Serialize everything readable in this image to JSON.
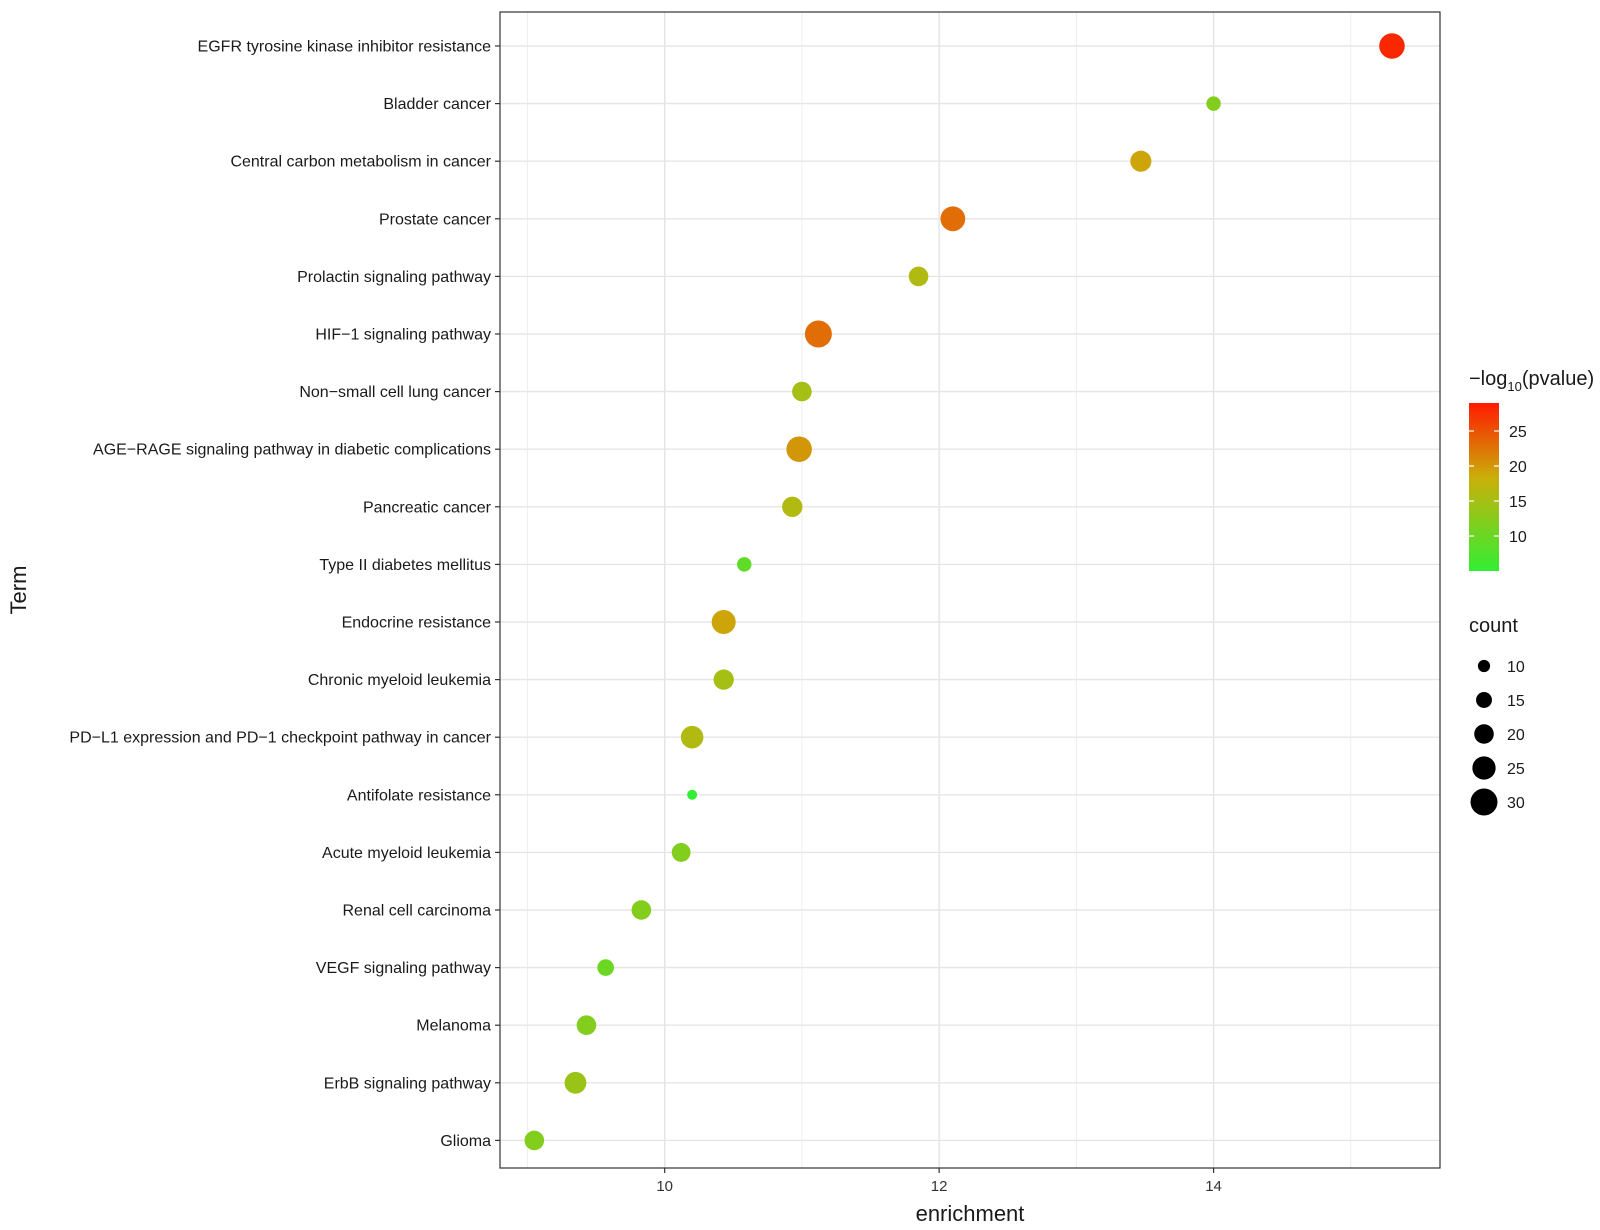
{
  "chart_data": {
    "type": "scatter",
    "xlabel": "enrichment",
    "ylabel": "Term",
    "xlim": [
      8.8,
      15.65
    ],
    "x_ticks": [
      10,
      12,
      14
    ],
    "grid": true,
    "terms": [
      {
        "term": "EGFR tyrosine kinase inhibitor resistance",
        "enrichment": 15.3,
        "pvalue_log10": 28,
        "count": 28
      },
      {
        "term": "Bladder cancer",
        "enrichment": 14.0,
        "pvalue_log10": 12,
        "count": 13
      },
      {
        "term": "Central carbon metabolism in cancer",
        "enrichment": 13.47,
        "pvalue_log10": 19,
        "count": 22
      },
      {
        "term": "Prostate cancer",
        "enrichment": 12.1,
        "pvalue_log10": 23,
        "count": 27
      },
      {
        "term": "Prolactin signaling pathway",
        "enrichment": 11.85,
        "pvalue_log10": 16,
        "count": 20
      },
      {
        "term": "HIF-1 signaling pathway",
        "enrichment": 11.12,
        "pvalue_log10": 23,
        "count": 30
      },
      {
        "term": "Non-small cell lung cancer",
        "enrichment": 11.0,
        "pvalue_log10": 15,
        "count": 20
      },
      {
        "term": "AGE-RAGE signaling pathway in diabetic complications",
        "enrichment": 10.98,
        "pvalue_log10": 20,
        "count": 28
      },
      {
        "term": "Pancreatic cancer",
        "enrichment": 10.93,
        "pvalue_log10": 16,
        "count": 21
      },
      {
        "term": "Type II diabetes mellitus",
        "enrichment": 10.58,
        "pvalue_log10": 9,
        "count": 13
      },
      {
        "term": "Endocrine resistance",
        "enrichment": 10.43,
        "pvalue_log10": 19,
        "count": 26
      },
      {
        "term": "Chronic myeloid leukemia",
        "enrichment": 10.43,
        "pvalue_log10": 15,
        "count": 21
      },
      {
        "term": "PD-L1 expression and PD-1 checkpoint pathway in cancer",
        "enrichment": 10.2,
        "pvalue_log10": 16,
        "count": 24
      },
      {
        "term": "Antifolate resistance",
        "enrichment": 10.2,
        "pvalue_log10": 5,
        "count": 7
      },
      {
        "term": "Acute myeloid leukemia",
        "enrichment": 10.12,
        "pvalue_log10": 12,
        "count": 19
      },
      {
        "term": "Renal cell carcinoma",
        "enrichment": 9.83,
        "pvalue_log10": 12,
        "count": 20
      },
      {
        "term": "VEGF signaling pathway",
        "enrichment": 9.57,
        "pvalue_log10": 10,
        "count": 16
      },
      {
        "term": "Melanoma",
        "enrichment": 9.43,
        "pvalue_log10": 12,
        "count": 20
      },
      {
        "term": "ErbB signaling pathway",
        "enrichment": 9.35,
        "pvalue_log10": 14,
        "count": 23
      },
      {
        "term": "Glioma",
        "enrichment": 9.05,
        "pvalue_log10": 12,
        "count": 20
      }
    ],
    "color_legend": {
      "title_prefix": "−log",
      "title_subscript": "10",
      "title_suffix": "(pvalue)",
      "range": [
        5,
        29
      ],
      "ticks": [
        25,
        20,
        15,
        10
      ],
      "low_color": "#33ee33",
      "mid_color": "#c9b00a",
      "high_color": "#ff1a00"
    },
    "size_legend": {
      "title": "count",
      "values": [
        10,
        15,
        20,
        25,
        30
      ],
      "count_range": [
        7,
        30
      ]
    }
  }
}
